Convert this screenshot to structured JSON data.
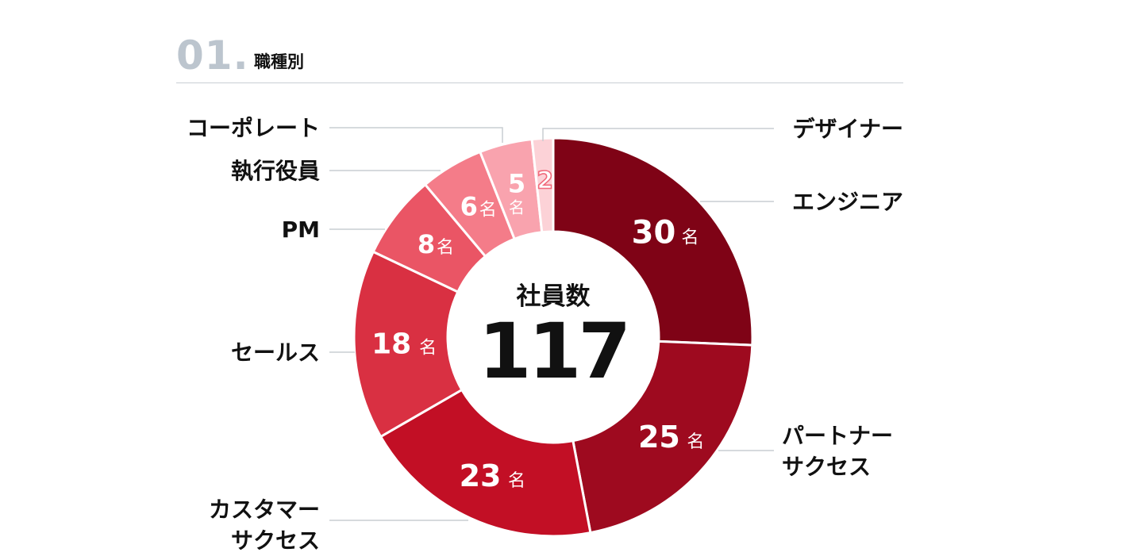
{
  "section": {
    "number": "01.",
    "title": "職種別"
  },
  "chart_data": {
    "type": "pie",
    "style": "donut",
    "center_label": "社員数",
    "center_value": "117",
    "unit": "名",
    "total": 117,
    "start": "top, clockwise",
    "slices": [
      {
        "label": "エンジニア",
        "value": 30,
        "color": "#7f0316",
        "label_side": "right"
      },
      {
        "label": "パートナーサクセス",
        "lines": [
          "パートナー",
          "サクセス"
        ],
        "value": 25,
        "color": "#9e0a1f",
        "label_side": "right"
      },
      {
        "label": "カスタマーサクセス",
        "lines": [
          "カスタマー",
          "サクセス"
        ],
        "value": 23,
        "color": "#c20f25",
        "label_side": "left"
      },
      {
        "label": "セールス",
        "value": 18,
        "color": "#d93042",
        "label_side": "left"
      },
      {
        "label": "PM",
        "value": 8,
        "color": "#ea5565",
        "label_side": "left"
      },
      {
        "label": "執行役員",
        "value": 6,
        "color": "#f47c89",
        "label_side": "left"
      },
      {
        "label": "コーポレート",
        "value": 5,
        "color": "#f9a3ae",
        "label_side": "left"
      },
      {
        "label": "デザイナー",
        "value": 2,
        "color": "#fcd2d7",
        "label_side": "right",
        "outlined_value": true
      }
    ]
  }
}
